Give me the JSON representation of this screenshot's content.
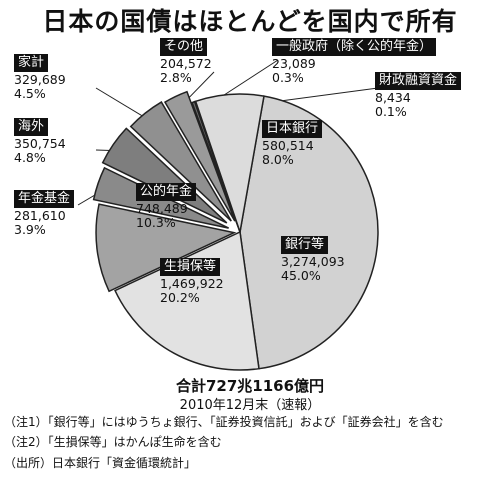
{
  "chart_data": {
    "type": "pie",
    "title": "日本の国債はほとんどを国内で所有",
    "slices": [
      {
        "name": "銀行等",
        "value_text": "3,274,093",
        "value": 3274093,
        "pct_text": "45.0%",
        "pct": 45.0,
        "color": "#d2d2d2"
      },
      {
        "name": "生損保等",
        "value_text": "1,469,922",
        "value": 1469922,
        "pct_text": "20.2%",
        "pct": 20.2,
        "color": "#e2e2e2"
      },
      {
        "name": "公的年金",
        "value_text": "748,489",
        "value": 748489,
        "pct_text": "10.3%",
        "pct": 10.3,
        "color": "#a3a3a3"
      },
      {
        "name": "年金基金",
        "value_text": "281,610",
        "value": 281610,
        "pct_text": "3.9%",
        "pct": 3.9,
        "color": "#8a8a8a"
      },
      {
        "name": "海外",
        "value_text": "350,754",
        "value": 350754,
        "pct_text": "4.8%",
        "pct": 4.8,
        "color": "#7e7e7e"
      },
      {
        "name": "家計",
        "value_text": "329,689",
        "value": 329689,
        "pct_text": "4.5%",
        "pct": 4.5,
        "color": "#909090"
      },
      {
        "name": "その他",
        "value_text": "204,572",
        "value": 204572,
        "pct_text": "2.8%",
        "pct": 2.8,
        "color": "#9a9a9a"
      },
      {
        "name": "一般政府（除く公的年金）",
        "value_text": "23,089",
        "value": 23089,
        "pct_text": "0.3%",
        "pct": 0.3,
        "color": "#6e6e6e"
      },
      {
        "name": "財政融資資金",
        "value_text": "8,434",
        "value": 8434,
        "pct_text": "0.1%",
        "pct": 0.1,
        "color": "#6e6e6e"
      },
      {
        "name": "日本銀行",
        "value_text": "580,514",
        "value": 580514,
        "pct_text": "8.0%",
        "pct": 8.0,
        "color": "#dcdcdc"
      }
    ],
    "total_text": "合計727兆1166億円",
    "date_text": "2010年12月末（速報）",
    "notes": [
      "（注1）「銀行等」にはゆうちょ銀行、「証券投資信託」および「証券会社」を含む",
      "（注2）「生損保等」はかんぽ生命を含む",
      "（出所）日本銀行「資金循環統計」"
    ]
  }
}
